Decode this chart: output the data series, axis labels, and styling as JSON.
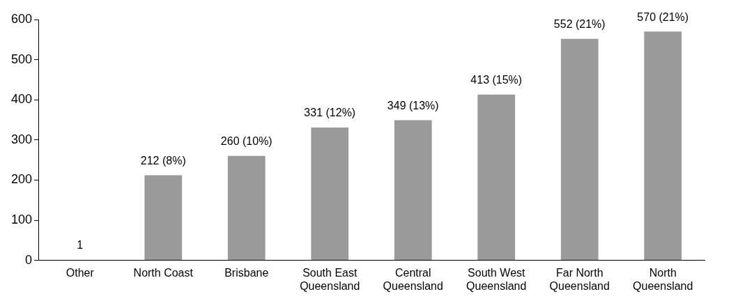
{
  "chart_data": {
    "type": "bar",
    "categories": [
      "Other",
      "North Coast",
      "Brisbane",
      "South East Queensland",
      "Central Queensland",
      "South West Queensland",
      "Far North Queensland",
      "North Queensland"
    ],
    "values": [
      1,
      212,
      260,
      331,
      349,
      413,
      552,
      570
    ],
    "value_labels": [
      "1",
      "212 (8%)",
      "260 (10%)",
      "331 (12%)",
      "349 (13%)",
      "413 (15%)",
      "552 (21%)",
      "570 (21%)"
    ],
    "color": "#9a9a9a",
    "ylim": [
      0,
      600
    ],
    "yticks": [
      0,
      100,
      200,
      300,
      400,
      500,
      600
    ],
    "grid": false,
    "legend": false
  }
}
